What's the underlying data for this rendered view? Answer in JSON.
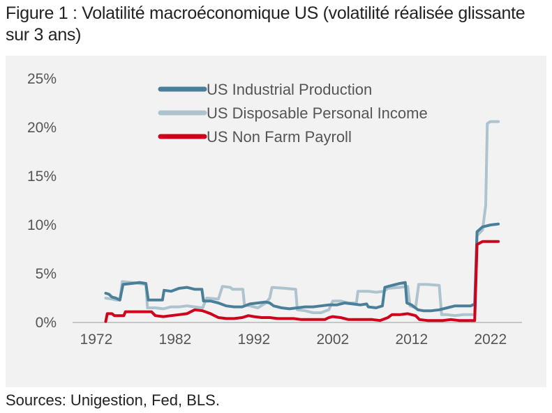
{
  "figure": {
    "title": "Figure 1 : Volatilité macroéconomique US (volatilité réalisée glissante sur 3 ans)",
    "source": "Sources: Unigestion, Fed, BLS."
  },
  "chart_data": {
    "type": "line",
    "title": "Figure 1 : Volatilité macroéconomique US (volatilité réalisée glissante sur 3 ans)",
    "xlabel": "",
    "ylabel": "",
    "xlim": [
      1969,
      2026
    ],
    "ylim": [
      0,
      25
    ],
    "x_ticks": [
      "1972",
      "1982",
      "1992",
      "2002",
      "2012",
      "2022"
    ],
    "y_ticks": [
      "25%",
      "20%",
      "15%",
      "10%",
      "5%",
      "0%"
    ],
    "y_tick_values": [
      25,
      20,
      15,
      10,
      5,
      0
    ],
    "x_tick_values": [
      1972,
      1982,
      1992,
      2002,
      2012,
      2022
    ],
    "grid": false,
    "legend_position": "top-left",
    "series": [
      {
        "name": "US Industrial Production",
        "color": "#4a7f99",
        "points": [
          [
            1973.2,
            3.0
          ],
          [
            1973.6,
            2.9
          ],
          [
            1974.0,
            2.6
          ],
          [
            1974.5,
            2.5
          ],
          [
            1975.0,
            2.3
          ],
          [
            1975.4,
            3.9
          ],
          [
            1976.5,
            4.0
          ],
          [
            1977.5,
            4.1
          ],
          [
            1978.3,
            4.0
          ],
          [
            1978.6,
            2.3
          ],
          [
            1979.5,
            2.3
          ],
          [
            1980.4,
            2.3
          ],
          [
            1980.6,
            3.3
          ],
          [
            1981.5,
            3.2
          ],
          [
            1982.5,
            3.5
          ],
          [
            1983.5,
            3.6
          ],
          [
            1984.5,
            3.4
          ],
          [
            1985.4,
            3.4
          ],
          [
            1985.6,
            2.2
          ],
          [
            1986.5,
            2.2
          ],
          [
            1987.5,
            2.0
          ],
          [
            1988.5,
            1.7
          ],
          [
            1989.5,
            1.6
          ],
          [
            1990.5,
            1.6
          ],
          [
            1991.5,
            1.9
          ],
          [
            1992.5,
            2.0
          ],
          [
            1993.5,
            2.1
          ],
          [
            1994.0,
            2.0
          ],
          [
            1994.5,
            1.7
          ],
          [
            1995.5,
            1.5
          ],
          [
            1996.5,
            1.4
          ],
          [
            1997.5,
            1.5
          ],
          [
            1998.5,
            1.6
          ],
          [
            1999.5,
            1.6
          ],
          [
            2000.5,
            1.7
          ],
          [
            2001.5,
            1.8
          ],
          [
            2002.5,
            1.8
          ],
          [
            2003.5,
            2.0
          ],
          [
            2004.5,
            1.9
          ],
          [
            2005.5,
            1.8
          ],
          [
            2006.3,
            1.9
          ],
          [
            2006.5,
            1.6
          ],
          [
            2007.5,
            1.5
          ],
          [
            2008.3,
            1.7
          ],
          [
            2008.6,
            3.6
          ],
          [
            2009.5,
            3.8
          ],
          [
            2010.5,
            4.0
          ],
          [
            2011.2,
            4.1
          ],
          [
            2011.4,
            2.0
          ],
          [
            2012.0,
            1.8
          ],
          [
            2012.8,
            1.3
          ],
          [
            2013.5,
            1.2
          ],
          [
            2014.5,
            1.2
          ],
          [
            2015.5,
            1.3
          ],
          [
            2016.5,
            1.5
          ],
          [
            2017.5,
            1.7
          ],
          [
            2018.5,
            1.7
          ],
          [
            2019.5,
            1.7
          ],
          [
            2020.0,
            1.9
          ],
          [
            2020.3,
            9.3
          ],
          [
            2021.0,
            9.8
          ],
          [
            2022.0,
            10.0
          ],
          [
            2023.0,
            10.1
          ]
        ]
      },
      {
        "name": "US Disposable Personal Income",
        "color": "#adc3cd",
        "points": [
          [
            1973.2,
            2.5
          ],
          [
            1974.0,
            2.4
          ],
          [
            1974.5,
            2.3
          ],
          [
            1975.0,
            2.3
          ],
          [
            1975.3,
            4.2
          ],
          [
            1976.5,
            4.1
          ],
          [
            1977.5,
            4.0
          ],
          [
            1978.3,
            3.9
          ],
          [
            1978.5,
            1.5
          ],
          [
            1979.5,
            1.5
          ],
          [
            1980.5,
            1.4
          ],
          [
            1981.5,
            1.6
          ],
          [
            1982.5,
            1.6
          ],
          [
            1983.5,
            1.7
          ],
          [
            1984.5,
            1.6
          ],
          [
            1985.5,
            1.5
          ],
          [
            1986.0,
            2.5
          ],
          [
            1987.5,
            2.4
          ],
          [
            1988.0,
            3.7
          ],
          [
            1989.0,
            3.6
          ],
          [
            1989.3,
            3.4
          ],
          [
            1990.6,
            3.4
          ],
          [
            1990.8,
            1.8
          ],
          [
            1991.5,
            1.7
          ],
          [
            1992.5,
            1.5
          ],
          [
            1993.5,
            2.0
          ],
          [
            1994.0,
            2.5
          ],
          [
            1994.3,
            3.6
          ],
          [
            1996.0,
            3.5
          ],
          [
            1997.3,
            3.4
          ],
          [
            1997.5,
            1.3
          ],
          [
            1998.5,
            1.2
          ],
          [
            1999.5,
            1.0
          ],
          [
            2000.5,
            1.0
          ],
          [
            2001.5,
            1.3
          ],
          [
            2002.0,
            2.2
          ],
          [
            2003.0,
            2.2
          ],
          [
            2004.0,
            2.0
          ],
          [
            2005.0,
            2.0
          ],
          [
            2005.2,
            3.2
          ],
          [
            2006.5,
            3.2
          ],
          [
            2007.5,
            3.1
          ],
          [
            2008.5,
            3.2
          ],
          [
            2009.0,
            3.5
          ],
          [
            2010.5,
            3.6
          ],
          [
            2011.5,
            3.7
          ],
          [
            2011.8,
            1.7
          ],
          [
            2012.5,
            1.5
          ],
          [
            2012.9,
            3.9
          ],
          [
            2014.0,
            3.9
          ],
          [
            2015.5,
            3.8
          ],
          [
            2015.8,
            0.8
          ],
          [
            2016.5,
            0.8
          ],
          [
            2017.5,
            0.7
          ],
          [
            2018.5,
            0.8
          ],
          [
            2019.5,
            0.8
          ],
          [
            2020.0,
            0.8
          ],
          [
            2020.3,
            8.9
          ],
          [
            2021.0,
            9.5
          ],
          [
            2021.4,
            12.0
          ],
          [
            2021.6,
            20.4
          ],
          [
            2022.0,
            20.6
          ],
          [
            2023.0,
            20.6
          ]
        ]
      },
      {
        "name": "US Non Farm Payroll",
        "color": "#d0021b",
        "points": [
          [
            1973.2,
            0.1
          ],
          [
            1973.4,
            0.9
          ],
          [
            1974.0,
            0.9
          ],
          [
            1974.3,
            0.7
          ],
          [
            1975.5,
            0.7
          ],
          [
            1975.7,
            1.1
          ],
          [
            1977.0,
            1.1
          ],
          [
            1978.0,
            1.1
          ],
          [
            1979.0,
            1.1
          ],
          [
            1979.5,
            0.7
          ],
          [
            1980.5,
            0.6
          ],
          [
            1981.5,
            0.7
          ],
          [
            1982.5,
            0.8
          ],
          [
            1983.5,
            0.9
          ],
          [
            1984.0,
            1.1
          ],
          [
            1984.5,
            1.3
          ],
          [
            1985.5,
            1.2
          ],
          [
            1986.5,
            0.9
          ],
          [
            1987.5,
            0.5
          ],
          [
            1988.5,
            0.4
          ],
          [
            1989.5,
            0.4
          ],
          [
            1990.5,
            0.5
          ],
          [
            1991.3,
            0.7
          ],
          [
            1992.0,
            0.6
          ],
          [
            1993.0,
            0.5
          ],
          [
            1994.0,
            0.5
          ],
          [
            1995.0,
            0.4
          ],
          [
            1996.0,
            0.4
          ],
          [
            1997.0,
            0.4
          ],
          [
            1998.0,
            0.3
          ],
          [
            1999.0,
            0.3
          ],
          [
            2000.0,
            0.3
          ],
          [
            2001.0,
            0.3
          ],
          [
            2001.5,
            0.5
          ],
          [
            2002.0,
            0.6
          ],
          [
            2003.0,
            0.5
          ],
          [
            2004.0,
            0.3
          ],
          [
            2005.0,
            0.3
          ],
          [
            2006.0,
            0.3
          ],
          [
            2007.0,
            0.3
          ],
          [
            2008.0,
            0.2
          ],
          [
            2009.0,
            0.5
          ],
          [
            2009.5,
            0.8
          ],
          [
            2010.5,
            0.8
          ],
          [
            2011.5,
            0.9
          ],
          [
            2012.5,
            0.7
          ],
          [
            2013.0,
            0.3
          ],
          [
            2014.0,
            0.2
          ],
          [
            2015.0,
            0.2
          ],
          [
            2016.0,
            0.2
          ],
          [
            2017.0,
            0.3
          ],
          [
            2018.0,
            0.2
          ],
          [
            2019.0,
            0.2
          ],
          [
            2020.0,
            0.2
          ],
          [
            2020.3,
            8.0
          ],
          [
            2021.0,
            8.3
          ],
          [
            2022.0,
            8.3
          ],
          [
            2023.0,
            8.3
          ]
        ]
      }
    ]
  }
}
